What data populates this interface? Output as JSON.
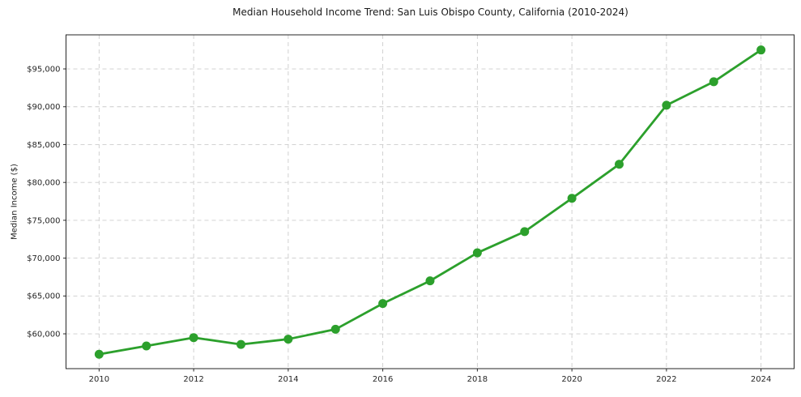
{
  "title": "Median Household Income Trend: San Luis Obispo County, California (2010-2024)",
  "chart_data": {
    "type": "line",
    "title": "Median Household Income Trend: San Luis Obispo County, California (2010-2024)",
    "xlabel": "",
    "ylabel": "Median Income ($)",
    "x": [
      2010,
      2011,
      2012,
      2013,
      2014,
      2015,
      2016,
      2017,
      2018,
      2019,
      2020,
      2021,
      2022,
      2023,
      2024
    ],
    "values": [
      57300,
      58400,
      59500,
      58600,
      59300,
      60600,
      64000,
      67000,
      70700,
      73500,
      77900,
      82400,
      90200,
      93300,
      97500
    ],
    "series_name": "Median Household Income",
    "xticks": [
      2010,
      2012,
      2014,
      2016,
      2018,
      2020,
      2022,
      2024
    ],
    "yticks": [
      60000,
      65000,
      70000,
      75000,
      80000,
      85000,
      90000,
      95000
    ],
    "ytick_labels": [
      "$60,000",
      "$65,000",
      "$70,000",
      "$75,000",
      "$80,000",
      "$85,000",
      "$90,000",
      "$95,000"
    ],
    "xlim": [
      2009.3,
      2024.7
    ],
    "ylim": [
      55400,
      99500
    ],
    "grid": true,
    "grid_style": "dashed",
    "legend": "none",
    "line_color": "#2ca02c",
    "grid_color": "#cccccc",
    "axis_color": "#262626",
    "marker": "circle",
    "marker_diameter": 11,
    "line_width": 2.8
  }
}
